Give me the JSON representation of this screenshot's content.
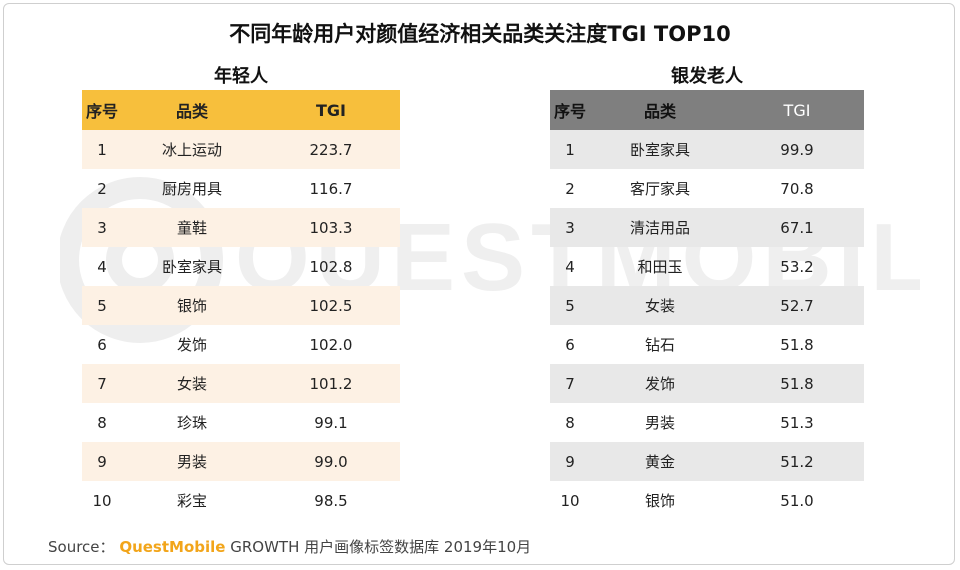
{
  "title": "不同年龄用户对颜值经济相关品类关注度TGI TOP10",
  "watermark_text": "QUESTMOBILE",
  "source": {
    "prefix": "Source：",
    "brand": "QuestMobile",
    "rest": "GROWTH 用户画像标签数据库   2019年10月"
  },
  "chart_data": [
    {
      "type": "table",
      "title": "年轻人",
      "columns": [
        "序号",
        "品类",
        "TGI"
      ],
      "rows": [
        [
          "1",
          "冰上运动",
          "223.7"
        ],
        [
          "2",
          "厨房用具",
          "116.7"
        ],
        [
          "3",
          "童鞋",
          "103.3"
        ],
        [
          "4",
          "卧室家具",
          "102.8"
        ],
        [
          "5",
          "银饰",
          "102.5"
        ],
        [
          "6",
          "发饰",
          "102.0"
        ],
        [
          "7",
          "女装",
          "101.2"
        ],
        [
          "8",
          "珍珠",
          "99.1"
        ],
        [
          "9",
          "男装",
          "99.0"
        ],
        [
          "10",
          "彩宝",
          "98.5"
        ]
      ]
    },
    {
      "type": "table",
      "title": "银发老人",
      "columns": [
        "序号",
        "品类",
        "TGI"
      ],
      "rows": [
        [
          "1",
          "卧室家具",
          "99.9"
        ],
        [
          "2",
          "客厅家具",
          "70.8"
        ],
        [
          "3",
          "清洁用品",
          "67.1"
        ],
        [
          "4",
          "和田玉",
          "53.2"
        ],
        [
          "5",
          "女装",
          "52.7"
        ],
        [
          "6",
          "钻石",
          "51.8"
        ],
        [
          "7",
          "发饰",
          "51.8"
        ],
        [
          "8",
          "男装",
          "51.3"
        ],
        [
          "9",
          "黄金",
          "51.2"
        ],
        [
          "10",
          "银饰",
          "51.0"
        ]
      ]
    }
  ]
}
